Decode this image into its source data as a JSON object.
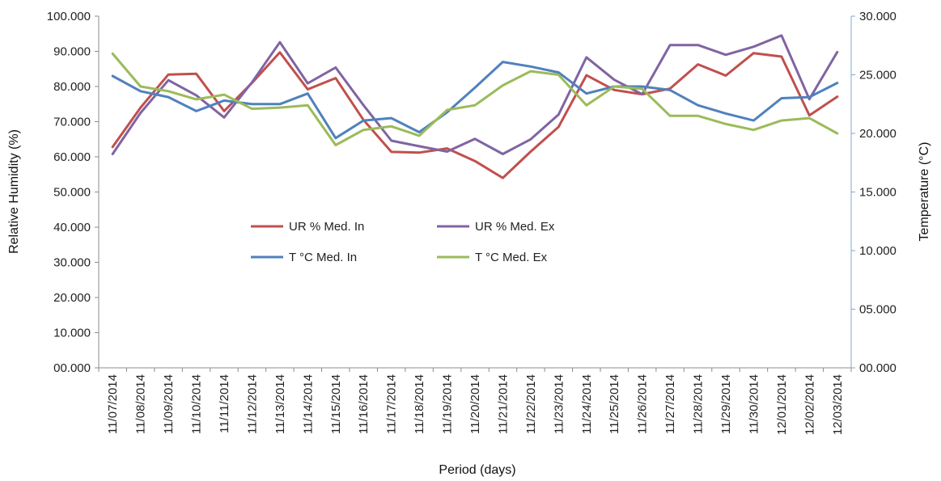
{
  "chart_data": {
    "type": "line",
    "xlabel": "Period (days)",
    "ylabel_left": "Relative Humidity (%)",
    "ylabel_right": "Temperature (°C)",
    "left_axis": {
      "min": 0,
      "max": 100,
      "step": 10,
      "tick_labels": [
        "00.000",
        "10.000",
        "20.000",
        "30.000",
        "40.000",
        "50.000",
        "60.000",
        "70.000",
        "80.000",
        "90.000",
        "100.000"
      ]
    },
    "right_axis": {
      "min": 0,
      "max": 30,
      "step": 5,
      "tick_labels": [
        "00.000",
        "05.000",
        "10.000",
        "15.000",
        "20.000",
        "25.000",
        "30.000"
      ]
    },
    "grid": false,
    "legend_position": "center-left, inside plot",
    "categories": [
      "11/07/2014",
      "11/08/2014",
      "11/09/2014",
      "11/10/2014",
      "11/11/2014",
      "11/12/2014",
      "11/13/2014",
      "11/14/2014",
      "11/15/2014",
      "11/16/2014",
      "11/17/2014",
      "11/18/2014",
      "11/19/2014",
      "11/20/2014",
      "11/21/2014",
      "11/22/2014",
      "11/23/2014",
      "11/24/2014",
      "11/25/2014",
      "11/26/2014",
      "11/27/2014",
      "11/28/2014",
      "11/29/2014",
      "11/30/2014",
      "12/01/2014",
      "12/02/2014",
      "12/03/2014"
    ],
    "series": [
      {
        "name": "UR % Med. In",
        "axis": "left",
        "color": "#c0504d",
        "values": [
          62.8,
          74.0,
          83.4,
          83.6,
          73.0,
          81.0,
          89.7,
          79.2,
          82.4,
          70.5,
          61.4,
          61.2,
          62.4,
          58.8,
          54.0,
          61.5,
          68.5,
          83.2,
          79.0,
          77.8,
          79.4,
          86.3,
          83.1,
          89.5,
          88.5,
          71.8,
          77.1
        ]
      },
      {
        "name": "UR % Med. Ex",
        "axis": "left",
        "color": "#8064a2",
        "values": [
          60.8,
          72.5,
          81.8,
          77.5,
          71.2,
          81.2,
          92.6,
          80.9,
          85.4,
          74.7,
          64.6,
          63.0,
          61.5,
          65.1,
          60.8,
          65.0,
          72.0,
          88.3,
          81.9,
          77.8,
          91.8,
          91.8,
          89.0,
          91.3,
          94.5,
          76.4,
          89.8
        ]
      },
      {
        "name": "T °C Med. In",
        "axis": "right",
        "color": "#4f81bd",
        "values": [
          24.9,
          23.6,
          23.1,
          21.9,
          22.8,
          22.5,
          22.5,
          23.4,
          19.6,
          21.1,
          21.3,
          20.1,
          21.8,
          23.9,
          26.1,
          25.7,
          25.2,
          23.4,
          24.0,
          24.0,
          23.7,
          22.4,
          21.7,
          21.1,
          23.0,
          23.1,
          24.3
        ]
      },
      {
        "name": "T °C Med. Ex",
        "axis": "right",
        "color": "#9bbb59",
        "values": [
          26.8,
          24.0,
          23.6,
          22.9,
          23.3,
          22.1,
          22.2,
          22.4,
          19.0,
          20.3,
          20.6,
          19.8,
          22.0,
          22.4,
          24.1,
          25.3,
          25.0,
          22.4,
          24.0,
          23.8,
          21.5,
          21.5,
          20.8,
          20.3,
          21.1,
          21.3,
          20.0
        ]
      }
    ]
  }
}
